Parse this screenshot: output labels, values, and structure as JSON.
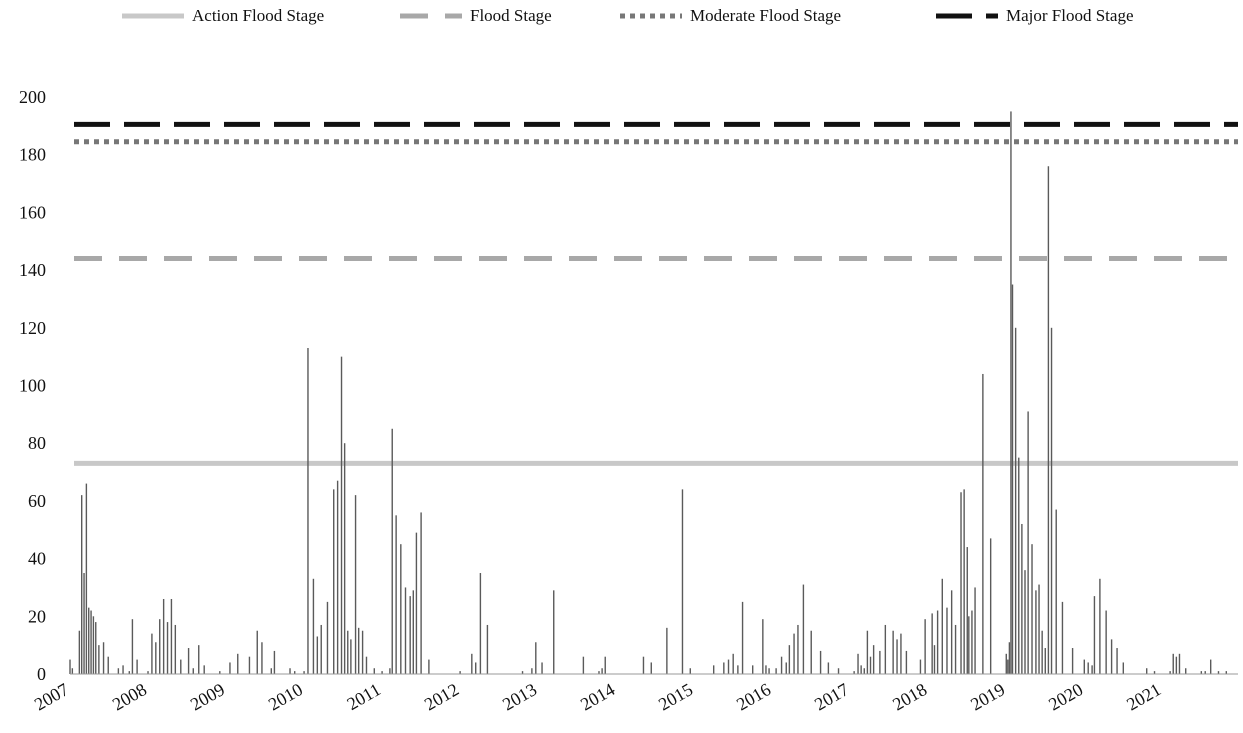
{
  "chart_data": {
    "type": "bar",
    "title": "",
    "xlabel": "",
    "ylabel": "",
    "ylim": [
      0,
      200
    ],
    "yticks": [
      0,
      20,
      40,
      60,
      80,
      100,
      120,
      140,
      160,
      180,
      200
    ],
    "xticks": [
      "2007",
      "2008",
      "2009",
      "2010",
      "2011",
      "2012",
      "2013",
      "2014",
      "2015",
      "2016",
      "2017",
      "2018",
      "2019",
      "2020",
      "2021"
    ],
    "legend_position": "top",
    "grid": false,
    "colors": {
      "bars": "#5a5a5a",
      "action": "#c8c8c8",
      "flood": "#a8a8a8",
      "moderate": "#777777",
      "major": "#111111"
    },
    "thresholds": [
      {
        "name": "Action Flood Stage",
        "value": 73,
        "style": "solid"
      },
      {
        "name": "Flood Stage",
        "value": 144,
        "style": "dashed"
      },
      {
        "name": "Moderate Flood Stage",
        "value": 184.5,
        "style": "dotted"
      },
      {
        "name": "Major Flood Stage",
        "value": 190.5,
        "style": "long-dash"
      }
    ],
    "series": [
      {
        "name": "",
        "x": [
          2007.0,
          2007.03,
          2007.12,
          2007.15,
          2007.18,
          2007.21,
          2007.24,
          2007.27,
          2007.3,
          2007.33,
          2007.37,
          2007.43,
          2007.49,
          2007.62,
          2007.68,
          2007.76,
          2007.8,
          2007.86,
          2008.0,
          2008.05,
          2008.1,
          2008.15,
          2008.2,
          2008.25,
          2008.3,
          2008.35,
          2008.42,
          2008.52,
          2008.58,
          2008.65,
          2008.72,
          2008.92,
          2009.05,
          2009.15,
          2009.3,
          2009.4,
          2009.46,
          2009.58,
          2009.62,
          2009.82,
          2009.88,
          2010.0,
          2010.05,
          2010.12,
          2010.17,
          2010.22,
          2010.3,
          2010.38,
          2010.43,
          2010.48,
          2010.52,
          2010.56,
          2010.6,
          2010.66,
          2010.7,
          2010.75,
          2010.8,
          2010.9,
          2011.0,
          2011.1,
          2011.13,
          2011.18,
          2011.24,
          2011.3,
          2011.36,
          2011.4,
          2011.44,
          2011.5,
          2011.6,
          2012.0,
          2012.15,
          2012.2,
          2012.26,
          2012.35,
          2012.8,
          2012.92,
          2012.97,
          2013.05,
          2013.2,
          2013.58,
          2013.78,
          2013.82,
          2013.86,
          2014.35,
          2014.45,
          2014.65,
          2014.85,
          2014.95,
          2015.25,
          2015.38,
          2015.44,
          2015.5,
          2015.56,
          2015.62,
          2015.75,
          2015.88,
          2015.92,
          2015.96,
          2016.05,
          2016.12,
          2016.18,
          2016.22,
          2016.28,
          2016.33,
          2016.4,
          2016.5,
          2016.62,
          2016.72,
          2016.85,
          2017.05,
          2017.1,
          2017.14,
          2017.18,
          2017.22,
          2017.26,
          2017.3,
          2017.38,
          2017.45,
          2017.55,
          2017.6,
          2017.65,
          2017.72,
          2017.9,
          2017.96,
          2018.05,
          2018.08,
          2018.12,
          2018.18,
          2018.24,
          2018.3,
          2018.35,
          2018.42,
          2018.46,
          2018.5,
          2018.52,
          2018.56,
          2018.6,
          2018.7,
          2018.8,
          2019.0,
          2019.02,
          2019.04,
          2019.06,
          2019.08,
          2019.12,
          2019.16,
          2019.2,
          2019.24,
          2019.28,
          2019.33,
          2019.38,
          2019.42,
          2019.46,
          2019.5,
          2019.54,
          2019.58,
          2019.64,
          2019.72,
          2019.85,
          2020.0,
          2020.05,
          2020.1,
          2020.13,
          2020.2,
          2020.28,
          2020.35,
          2020.42,
          2020.5,
          2020.8,
          2020.9,
          2021.1,
          2021.14,
          2021.18,
          2021.22,
          2021.3,
          2021.5,
          2021.55,
          2021.62,
          2021.72,
          2021.82
        ],
        "values": [
          5,
          2,
          15,
          62,
          35,
          66,
          23,
          22,
          20,
          18,
          10,
          11,
          6,
          2,
          3,
          1,
          19,
          5,
          1,
          14,
          11,
          19,
          26,
          18,
          26,
          17,
          5,
          9,
          2,
          10,
          3,
          1,
          4,
          7,
          6,
          15,
          11,
          2,
          8,
          2,
          1,
          1,
          113,
          33,
          13,
          17,
          25,
          64,
          67,
          110,
          80,
          15,
          12,
          62,
          16,
          15,
          6,
          2,
          1,
          2,
          85,
          55,
          45,
          30,
          27,
          29,
          49,
          56,
          5,
          1,
          7,
          4,
          35,
          17,
          1,
          2,
          11,
          4,
          29,
          6,
          1,
          2,
          6,
          6,
          4,
          16,
          64,
          2,
          3,
          4,
          5,
          7,
          3,
          25,
          3,
          19,
          3,
          2,
          2,
          6,
          4,
          10,
          14,
          17,
          31,
          15,
          8,
          4,
          2,
          1,
          7,
          3,
          2,
          15,
          6,
          10,
          8,
          17,
          15,
          12,
          14,
          8,
          5,
          19,
          21,
          10,
          22,
          33,
          23,
          29,
          17,
          63,
          64,
          44,
          20,
          22,
          30,
          104,
          47,
          7,
          5,
          11,
          195,
          135,
          120,
          75,
          52,
          36,
          91,
          45,
          29,
          31,
          15,
          9,
          176,
          120,
          57,
          25,
          9,
          5,
          4,
          3,
          27,
          33,
          22,
          12,
          9,
          4,
          2,
          1,
          1,
          7,
          6,
          7,
          2,
          1,
          1,
          5,
          1,
          1
        ]
      }
    ]
  }
}
